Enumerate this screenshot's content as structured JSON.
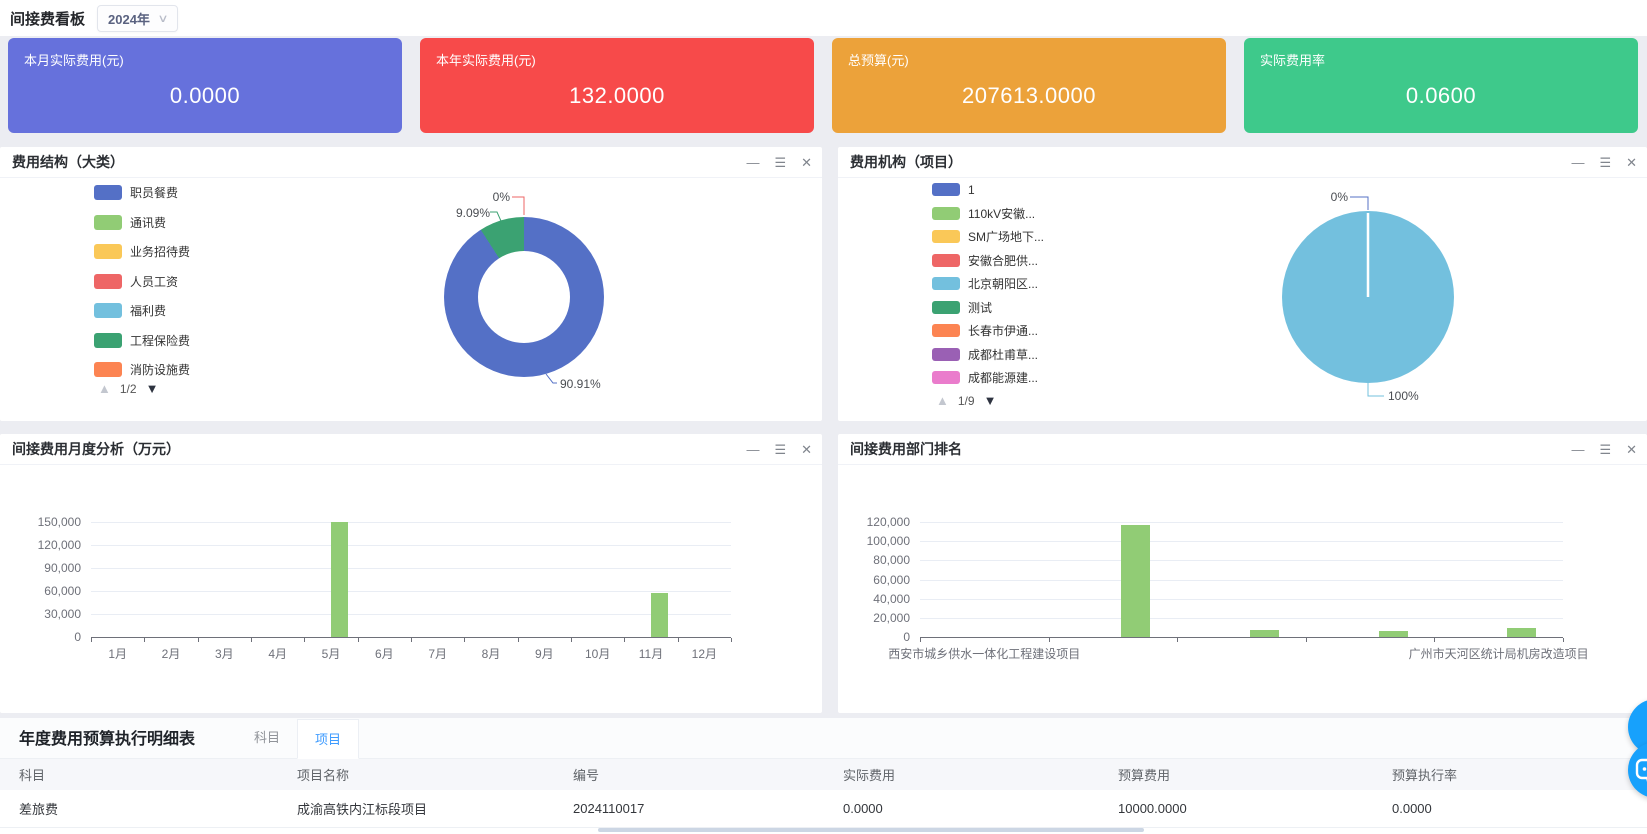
{
  "header": {
    "title": "间接费看板",
    "year": "2024年"
  },
  "icons": {
    "minimize": "—",
    "menu": "☰",
    "close": "✕",
    "chevron": "∨",
    "page_up": "▲",
    "page_down": "▼"
  },
  "kpi_cards": [
    {
      "label": "本月实际费用(元)",
      "value": "0.0000",
      "color": "#6671dc"
    },
    {
      "label": "本年实际费用(元)",
      "value": "132.0000",
      "color": "#f74a4a"
    },
    {
      "label": "总预算(元)",
      "value": "207613.0000",
      "color": "#eca23a"
    },
    {
      "label": "实际费用率",
      "value": "0.0600",
      "color": "#3ec98b"
    }
  ],
  "panels": {
    "pie1": {
      "title": "费用结构（大类）",
      "legend": [
        {
          "label": "职员餐费",
          "color": "#5470c6"
        },
        {
          "label": "通讯费",
          "color": "#91cc75"
        },
        {
          "label": "业务招待费",
          "color": "#fac858"
        },
        {
          "label": "人员工资",
          "color": "#ee6666"
        },
        {
          "label": "福利费",
          "color": "#73c0de"
        },
        {
          "label": "工程保险费",
          "color": "#3ba272"
        },
        {
          "label": "消防设施费",
          "color": "#fc8452"
        }
      ],
      "pagination": "1/2"
    },
    "pie2": {
      "title": "费用机构（项目）",
      "legend": [
        {
          "label": "1",
          "color": "#5470c6"
        },
        {
          "label": "110kV安徽...",
          "color": "#91cc75"
        },
        {
          "label": "SM广场地下...",
          "color": "#fac858"
        },
        {
          "label": "安徽合肥供...",
          "color": "#ee6666"
        },
        {
          "label": "北京朝阳区...",
          "color": "#73c0de"
        },
        {
          "label": "测试",
          "color": "#3ba272"
        },
        {
          "label": "长春市伊通...",
          "color": "#fc8452"
        },
        {
          "label": "成都杜甫草...",
          "color": "#9a60b4"
        },
        {
          "label": "成都能源建...",
          "color": "#ea7ccc"
        }
      ],
      "pagination": "1/9"
    },
    "bar1": {
      "title": "间接费用月度分析（万元）"
    },
    "bar2": {
      "title": "间接费用部门排名"
    }
  },
  "chart_data": [
    {
      "type": "pie",
      "title": "费用结构（大类）",
      "donut": true,
      "slices": [
        {
          "label": "90.91%",
          "value": 90.91,
          "color": "#5470c6"
        },
        {
          "label": "9.09%",
          "value": 9.09,
          "color": "#3ba272"
        },
        {
          "label": "0%",
          "value": 0,
          "color": "#ee6666"
        }
      ],
      "legend_position": "left",
      "legend_pages": "1/2"
    },
    {
      "type": "pie",
      "title": "费用机构（项目）",
      "donut": false,
      "slices": [
        {
          "label": "100%",
          "value": 100,
          "color": "#73c0de"
        },
        {
          "label": "0%",
          "value": 0,
          "color": "#5470c6"
        }
      ],
      "legend_position": "left",
      "legend_pages": "1/9"
    },
    {
      "type": "bar",
      "title": "间接费用月度分析（万元）",
      "categories": [
        "1月",
        "2月",
        "3月",
        "4月",
        "5月",
        "6月",
        "7月",
        "8月",
        "9月",
        "10月",
        "11月",
        "12月"
      ],
      "values": [
        0,
        0,
        0,
        0,
        150000,
        0,
        0,
        0,
        0,
        0,
        58000,
        0
      ],
      "ylim": [
        0,
        150000
      ],
      "y_ticks": [
        0,
        30000,
        60000,
        90000,
        120000,
        150000
      ],
      "bar_color": "#91cc75",
      "grid": true,
      "xlabel": "",
      "ylabel": ""
    },
    {
      "type": "bar",
      "title": "间接费用部门排名",
      "categories": [
        "西安市城乡供水一体化工程建设项目",
        "",
        "",
        "",
        "广州市天河区统计局机房改造项目"
      ],
      "values": [
        0,
        117000,
        7500,
        6000,
        9000
      ],
      "ylim": [
        0,
        120000
      ],
      "y_ticks": [
        0,
        20000,
        40000,
        60000,
        80000,
        100000,
        120000
      ],
      "bar_color": "#91cc75",
      "grid": true,
      "x_label_mode": "ends",
      "xlabel": "",
      "ylabel": ""
    }
  ],
  "table": {
    "title": "年度费用预算执行明细表",
    "tabs": [
      {
        "label": "科目",
        "active": false
      },
      {
        "label": "项目",
        "active": true
      }
    ],
    "columns": [
      "科目",
      "项目名称",
      "编号",
      "实际费用",
      "预算费用",
      "预算执行率"
    ],
    "rows": [
      [
        "差旅费",
        "成渝高铁内江标段项目",
        "2024110017",
        "0.0000",
        "10000.0000",
        "0.0000"
      ]
    ]
  }
}
